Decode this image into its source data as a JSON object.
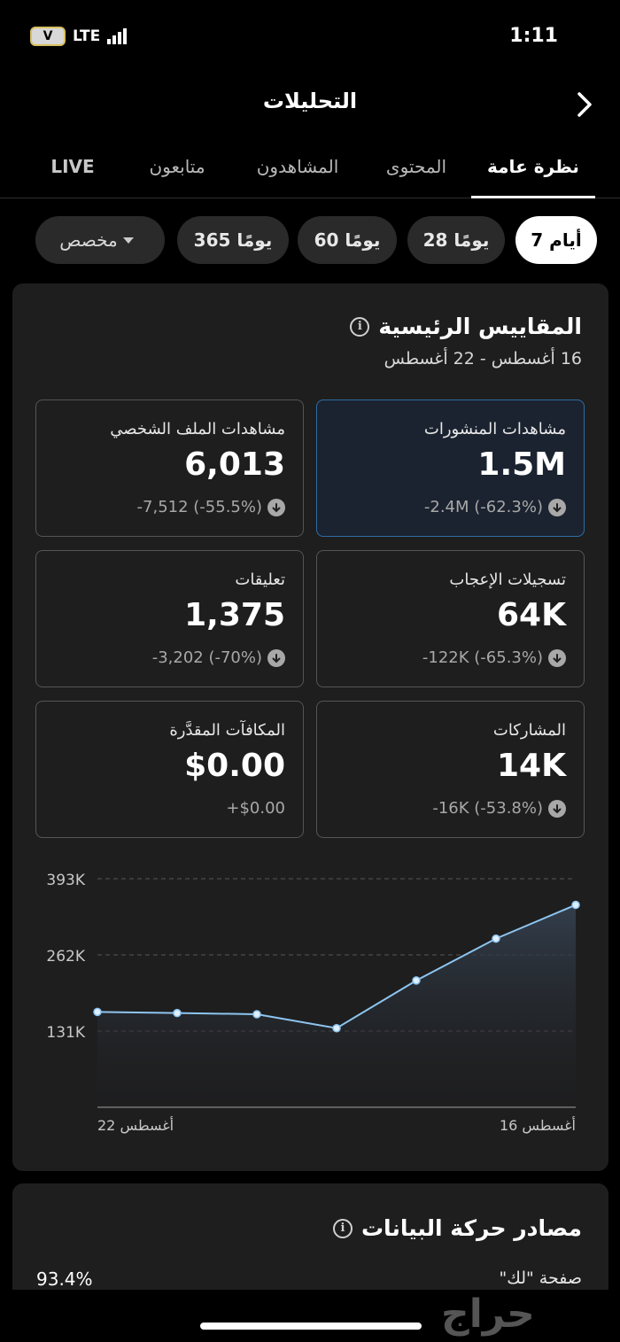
{
  "status_bar": {
    "carrier_badge": "V",
    "network": "LTE",
    "time": "1:11"
  },
  "header": {
    "title": "التحليلات"
  },
  "tabs": [
    {
      "label": "نظرة عامة",
      "active": true
    },
    {
      "label": "المحتوى",
      "active": false
    },
    {
      "label": "المشاهدون",
      "active": false
    },
    {
      "label": "متابعون",
      "active": false
    },
    {
      "label": "LIVE",
      "active": false
    }
  ],
  "periods": [
    {
      "label": "7 أيام",
      "active": true
    },
    {
      "label": "28 يومًا",
      "active": false
    },
    {
      "label": "60 يومًا",
      "active": false
    },
    {
      "label": "365 يومًا",
      "active": false
    },
    {
      "label": "مخصص",
      "active": false
    }
  ],
  "key_metrics": {
    "title": "المقاييس الرئيسية",
    "date_range": "16 أغسطس - 22 أغسطس",
    "items": [
      {
        "label": "مشاهدات المنشورات",
        "value": "1.5M",
        "change": "-2.4M (-62.3%)",
        "selected": true
      },
      {
        "label": "مشاهدات الملف الشخصي",
        "value": "6,013",
        "change": "-7,512 (-55.5%)",
        "selected": false
      },
      {
        "label": "تسجيلات الإعجاب",
        "value": "64K",
        "change": "-122K (-65.3%)",
        "selected": false
      },
      {
        "label": "تعليقات",
        "value": "1,375",
        "change": "-3,202 (-70%)",
        "selected": false
      },
      {
        "label": "المشاركات",
        "value": "14K",
        "change": "-16K (-53.8%)",
        "selected": false
      },
      {
        "label": "المكافآت المقدَّرة",
        "value": "$0.00",
        "change": "+$0.00",
        "selected": false
      }
    ]
  },
  "chart_data": {
    "type": "area",
    "x": [
      "16 أغسطس",
      "17 أغسطس",
      "18 أغسطس",
      "19 أغسطس",
      "20 أغسطس",
      "21 أغسطس",
      "22 أغسطس"
    ],
    "x_tick_labels": {
      "first": "16 أغسطس",
      "last": "22 أغسطس"
    },
    "x_direction": "right-to-left",
    "y_tick_labels": [
      "393K",
      "262K",
      "131K"
    ],
    "y_ticks": [
      393000,
      262000,
      131000
    ],
    "ylim": [
      0,
      393000
    ],
    "values": [
      348000,
      290000,
      218000,
      136000,
      160000,
      162000,
      164000
    ],
    "grid": "dashed horizontal",
    "line_color": "#8ec5f0",
    "fill_color": "#2a3442"
  },
  "traffic_sources": {
    "title": "مصادر حركة البيانات",
    "rows": [
      {
        "label": "صفحة \"لك\"",
        "percent": "93.4%"
      }
    ]
  },
  "watermark": "حراج"
}
